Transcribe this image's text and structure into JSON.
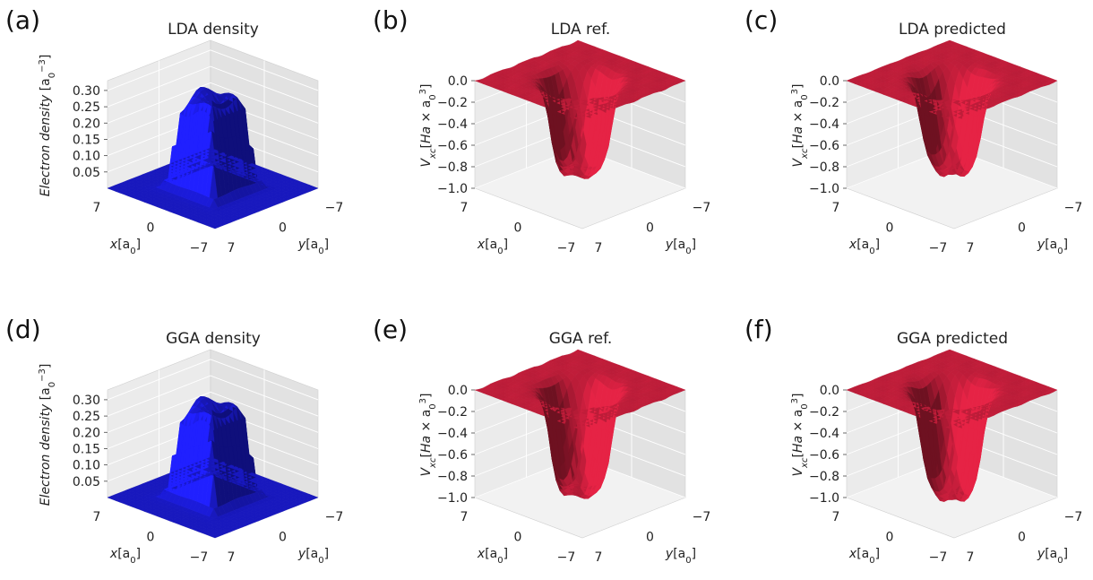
{
  "chart_data": [
    {
      "panel": "(a)",
      "title": "LDA density",
      "type": "surface3d",
      "kind": "density",
      "color": "#1c1ce0",
      "xlabel": "x[a0]",
      "ylabel": "y[a0]",
      "zlabel": "Electron density [a0^-3]",
      "x_ticks": [
        "7",
        "0",
        "−7"
      ],
      "y_ticks": [
        "7",
        "0",
        "−7"
      ],
      "z_ticks": [
        "0.05",
        "0.10",
        "0.15",
        "0.20",
        "0.25",
        "0.30"
      ],
      "xlim": [
        -7,
        7
      ],
      "ylim": [
        -7,
        7
      ],
      "zlim": [
        0,
        0.33
      ],
      "plateau": 0.3,
      "peak": 0.33
    },
    {
      "panel": "(b)",
      "title": "LDA ref.",
      "type": "surface3d",
      "kind": "vxc",
      "color": "#c81e3c",
      "xlabel": "x[a0]",
      "ylabel": "y[a0]",
      "zlabel": "Vxc[Ha × a0^3]",
      "x_ticks": [
        "7",
        "0",
        "−7"
      ],
      "y_ticks": [
        "7",
        "0",
        "−7"
      ],
      "z_ticks": [
        "0.0",
        "−0.2",
        "−0.4",
        "−0.6",
        "−0.8",
        "−1.0"
      ],
      "xlim": [
        -7,
        7
      ],
      "ylim": [
        -7,
        7
      ],
      "zlim": [
        -1.0,
        0.0
      ],
      "min": -0.85
    },
    {
      "panel": "(c)",
      "title": "LDA predicted",
      "type": "surface3d",
      "kind": "vxc",
      "color": "#c81e3c",
      "xlabel": "x[a0]",
      "ylabel": "y[a0]",
      "zlabel": "Vxc[Ha × a0^3]",
      "x_ticks": [
        "7",
        "0",
        "−7"
      ],
      "y_ticks": [
        "7",
        "0",
        "−7"
      ],
      "z_ticks": [
        "0.0",
        "−0.2",
        "−0.4",
        "−0.6",
        "−0.8",
        "−1.0"
      ],
      "xlim": [
        -7,
        7
      ],
      "ylim": [
        -7,
        7
      ],
      "zlim": [
        -1.0,
        0.0
      ],
      "min": -0.83
    },
    {
      "panel": "(d)",
      "title": "GGA density",
      "type": "surface3d",
      "kind": "density",
      "color": "#1c1ce0",
      "xlabel": "x[a0]",
      "ylabel": "y[a0]",
      "zlabel": "Electron density [a0^-3]",
      "x_ticks": [
        "7",
        "0",
        "−7"
      ],
      "y_ticks": [
        "7",
        "0",
        "−7"
      ],
      "z_ticks": [
        "0.05",
        "0.10",
        "0.15",
        "0.20",
        "0.25",
        "0.30"
      ],
      "xlim": [
        -7,
        7
      ],
      "ylim": [
        -7,
        7
      ],
      "zlim": [
        0,
        0.33
      ],
      "plateau": 0.3,
      "peak": 0.34
    },
    {
      "panel": "(e)",
      "title": "GGA ref.",
      "type": "surface3d",
      "kind": "vxc",
      "color": "#c81e3c",
      "xlabel": "x[a0]",
      "ylabel": "y[a0]",
      "zlabel": "Vxc[Ha × a0^3]",
      "x_ticks": [
        "7",
        "0",
        "−7"
      ],
      "y_ticks": [
        "7",
        "0",
        "−7"
      ],
      "z_ticks": [
        "0.0",
        "−0.2",
        "−0.4",
        "−0.6",
        "−0.8",
        "−1.0"
      ],
      "xlim": [
        -7,
        7
      ],
      "ylim": [
        -7,
        7
      ],
      "zlim": [
        -1.0,
        0.0
      ],
      "min": -0.95
    },
    {
      "panel": "(f)",
      "title": "GGA predicted",
      "type": "surface3d",
      "kind": "vxc",
      "color": "#c81e3c",
      "xlabel": "x[a0]",
      "ylabel": "y[a0]",
      "zlabel": "Vxc[Ha × a0^3]",
      "x_ticks": [
        "7",
        "0",
        "−7"
      ],
      "y_ticks": [
        "7",
        "0",
        "−7"
      ],
      "z_ticks": [
        "0.0",
        "−0.2",
        "−0.4",
        "−0.6",
        "−0.8",
        "−1.0"
      ],
      "xlim": [
        -7,
        7
      ],
      "ylim": [
        -7,
        7
      ],
      "zlim": [
        -1.0,
        0.0
      ],
      "min": -0.98
    }
  ]
}
